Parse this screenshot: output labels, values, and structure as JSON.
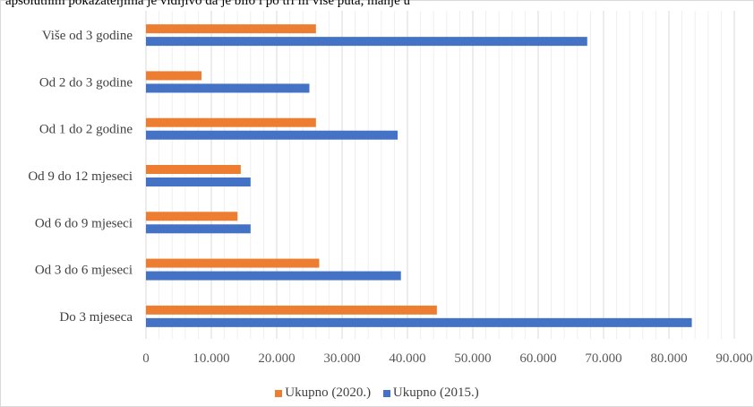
{
  "header_text": "apsolutnim pokazateljima je vidljivo da je bilo i po tri ili više puta, manje u",
  "chart_data": {
    "type": "bar",
    "orientation": "horizontal",
    "categories": [
      "Više od 3 godine",
      "Od 2 do 3 godine",
      "Od 1 do 2 godine",
      "Od 9 do 12 mjeseci",
      "Od 6 do 9 mjeseci",
      "Od 3 do 6 mjeseci",
      "Do 3 mjeseca"
    ],
    "series": [
      {
        "name": "Ukupno (2020.)",
        "color": "#ED7D31",
        "values": [
          26000,
          8500,
          26000,
          14500,
          14000,
          26500,
          44500
        ]
      },
      {
        "name": "Ukupno (2015.)",
        "color": "#4472C4",
        "values": [
          67500,
          25000,
          38500,
          16000,
          16000,
          39000,
          83500
        ]
      }
    ],
    "xlim": [
      0,
      90000
    ],
    "xticks": [
      0,
      10000,
      20000,
      30000,
      40000,
      50000,
      60000,
      70000,
      80000,
      90000
    ],
    "xtick_labels": [
      "0",
      "10.000",
      "20.000",
      "30.000",
      "40.000",
      "50.000",
      "60.000",
      "70.000",
      "80.000",
      "90.000"
    ],
    "grid": true,
    "legend_position": "bottom"
  }
}
